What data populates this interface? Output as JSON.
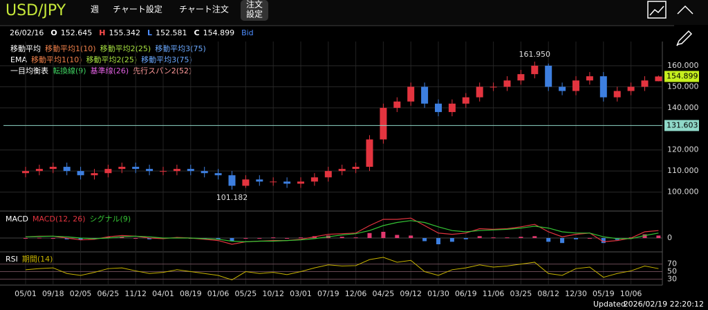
{
  "header": {
    "symbol": "USD/JPY",
    "period": "週",
    "menu": [
      "チャート設定",
      "チャート注文"
    ],
    "order_settings": [
      "注文",
      "設定"
    ]
  },
  "quote": {
    "date": "26/02/16",
    "items": [
      {
        "key": "O",
        "value": 152.645
      },
      {
        "key": "H",
        "value": 155.342
      },
      {
        "key": "L",
        "value": 152.581
      },
      {
        "key": "C",
        "value": 154.899
      }
    ],
    "side": "Bid"
  },
  "legend": [
    [
      "移動平均",
      "移動平均1(10)",
      "移動平均2(25)",
      "移動平均3(75)"
    ],
    [
      "EMA",
      "移動平均1(10)",
      "移動平均2(25)",
      "移動平均3(75)"
    ],
    [
      "一目均衡表",
      "転換線(9)",
      "基準線(26)",
      "先行スパン2(52)"
    ]
  ],
  "chart_data": [
    {
      "type": "candlestick",
      "categories": [
        "05/01",
        null,
        "09/18",
        null,
        "02/05",
        null,
        "06/25",
        null,
        "11/12",
        null,
        "04/01",
        null,
        "08/19",
        null,
        "01/06",
        null,
        "05/25",
        null,
        "10/12",
        null,
        "03/01",
        null,
        "07/19",
        null,
        "12/06",
        null,
        "04/25",
        null,
        "09/12",
        null,
        "01/30",
        null,
        "06/19",
        null,
        "11/06",
        null,
        "03/25",
        null,
        "08/12",
        null,
        "12/30",
        null,
        "05/19",
        null,
        "10/06",
        null,
        null
      ],
      "open": [
        109,
        110,
        111,
        112,
        110,
        108,
        109,
        111,
        112,
        111,
        110,
        110,
        111,
        110,
        109,
        108,
        103,
        106,
        105,
        105,
        104,
        105,
        107,
        110,
        111,
        112,
        125,
        140,
        143,
        150,
        142,
        138,
        142,
        145,
        150,
        150,
        153,
        156,
        160,
        150,
        148,
        153,
        155,
        145,
        148,
        150,
        152.645
      ],
      "high": [
        112,
        113,
        114,
        114,
        112,
        111,
        113,
        114,
        114,
        113,
        112,
        113,
        113,
        112,
        111,
        110,
        108,
        108,
        107,
        107,
        107,
        109,
        112,
        113,
        114,
        127,
        142,
        145,
        152,
        152,
        144,
        144,
        147,
        152,
        152,
        155,
        158,
        161.95,
        161,
        152,
        155,
        157,
        157,
        150,
        152,
        155,
        155.342
      ],
      "low": [
        107,
        108,
        109,
        108,
        106,
        106,
        107,
        109,
        109,
        108,
        108,
        108,
        108,
        107,
        106,
        101.182,
        102,
        103,
        103,
        102,
        102,
        103,
        105,
        108,
        109,
        110,
        123,
        138,
        141,
        140,
        136,
        136,
        140,
        143,
        148,
        148,
        151,
        154,
        148,
        146,
        146,
        151,
        143,
        143,
        146,
        148,
        152.581
      ],
      "close": [
        110,
        111,
        112,
        110,
        108,
        109,
        111,
        112,
        111,
        110,
        110,
        111,
        110,
        109,
        108,
        103,
        106,
        105,
        105,
        104,
        105,
        107,
        110,
        111,
        112,
        125,
        140,
        143,
        150,
        142,
        138,
        142,
        145,
        150,
        150,
        153,
        156,
        160,
        150,
        148,
        153,
        155,
        145,
        148,
        150,
        153,
        154.899
      ],
      "up_color": "#e3343f",
      "down_color": "#3d7fe0",
      "ylim": [
        91,
        170.5
      ],
      "yticks": [
        {
          "value": 160,
          "label": "160.000"
        },
        {
          "value": 150,
          "label": "150.000"
        },
        {
          "value": 140,
          "label": "140.000"
        },
        {
          "value": 120,
          "label": "120.000"
        },
        {
          "value": 110,
          "label": "110.000"
        },
        {
          "value": 100,
          "label": "100.000"
        }
      ],
      "grid": true,
      "reference_line": 131.603,
      "reference_color": "#8fd8c8",
      "last_price": 154.899,
      "last_color": "#c6ef1e",
      "high_label": {
        "value": 161.95,
        "label": "161.950"
      },
      "low_label": {
        "value": 101.182,
        "label": "101.182"
      }
    },
    {
      "type": "macd",
      "title": "MACD",
      "series": [
        {
          "name": "MACD(12, 26)",
          "color": "#e3343f",
          "values": [
            0.2,
            0.3,
            0.3,
            0,
            -0.3,
            -0.2,
            0.2,
            0.4,
            0.3,
            0,
            -0.1,
            0.1,
            0,
            -0.2,
            -0.4,
            -1,
            -0.6,
            -0.5,
            -0.4,
            -0.4,
            -0.2,
            0.2,
            0.6,
            0.7,
            0.8,
            2,
            3,
            3,
            3.2,
            2,
            0.8,
            0.6,
            0.8,
            1.5,
            1.4,
            1.5,
            1.8,
            2.2,
            1,
            0.2,
            0.6,
            0.8,
            -0.6,
            -0.4,
            0,
            1,
            1.2
          ]
        },
        {
          "name": "シグナル(9)",
          "color": "#35c435",
          "values": [
            0.2,
            0.25,
            0.3,
            0.2,
            0,
            -0.1,
            0,
            0.2,
            0.3,
            0.2,
            0,
            0,
            0,
            -0.1,
            -0.2,
            -0.5,
            -0.6,
            -0.5,
            -0.5,
            -0.4,
            -0.3,
            -0.1,
            0.2,
            0.5,
            0.7,
            1.2,
            2,
            2.5,
            2.8,
            2.5,
            1.8,
            1.2,
            1,
            1.2,
            1.3,
            1.4,
            1.6,
            1.9,
            1.6,
            1,
            0.8,
            0.8,
            0.2,
            -0.1,
            -0.1,
            0.4,
            0.8
          ]
        }
      ],
      "histogram_colors": [
        "#e0386e",
        "#3d7fe0"
      ],
      "ylim": [
        -2,
        4
      ],
      "yticks": [
        0
      ]
    },
    {
      "type": "line",
      "title": "RSI",
      "series": [
        {
          "name": "期間(14)",
          "color": "#c8b400",
          "values": [
            55,
            58,
            60,
            45,
            40,
            48,
            58,
            60,
            52,
            45,
            48,
            55,
            50,
            45,
            40,
            28,
            50,
            45,
            48,
            42,
            50,
            60,
            68,
            65,
            66,
            82,
            88,
            75,
            80,
            50,
            40,
            55,
            60,
            68,
            62,
            65,
            70,
            75,
            45,
            40,
            58,
            62,
            35,
            45,
            52,
            65,
            58
          ]
        }
      ],
      "ylim": [
        16,
        97
      ],
      "yticks": [
        70,
        50,
        30
      ]
    }
  ],
  "footer": {
    "label": "Updated",
    "timestamp": "2026/02/19 22:20:12"
  }
}
